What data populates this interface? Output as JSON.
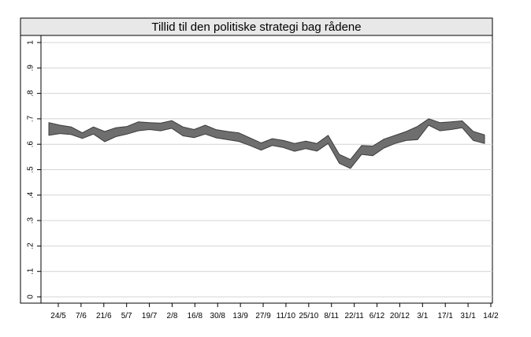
{
  "chart_data": {
    "type": "area",
    "title": "Tillid til den politiske strategi bag rådene",
    "xlabel": "",
    "ylabel": "",
    "ylim": [
      0,
      1
    ],
    "yticks": [
      0,
      0.1,
      0.2,
      0.3,
      0.4,
      0.5,
      0.6,
      0.7,
      0.8,
      0.9,
      1
    ],
    "ytick_labels": [
      "0",
      ".1",
      ".2",
      ".3",
      ".4",
      ".5",
      ".6",
      ".7",
      ".8",
      ".9",
      "1"
    ],
    "xtick_labels": [
      "24/5",
      "7/6",
      "21/6",
      "5/7",
      "19/7",
      "2/8",
      "16/8",
      "30/8",
      "13/9",
      "27/9",
      "11/10",
      "25/10",
      "8/11",
      "22/11",
      "6/12",
      "20/12",
      "3/1",
      "17/1",
      "31/1",
      "14/2"
    ],
    "grid": true,
    "band_color": "#6e6e6e",
    "band_edge_color": "#3c3c3c",
    "series": [
      {
        "upper": [
          0.685,
          0.675,
          0.668,
          0.645,
          0.668,
          0.65,
          0.665,
          0.67,
          0.688,
          0.685,
          0.683,
          0.693,
          0.668,
          0.658,
          0.675,
          0.657,
          0.65,
          0.645,
          0.625,
          0.605,
          0.622,
          0.615,
          0.603,
          0.612,
          0.603,
          0.635,
          0.56,
          0.54,
          0.595,
          0.593,
          0.62,
          0.635,
          0.65,
          0.67,
          0.7,
          0.685,
          0.688,
          0.692,
          0.65,
          0.637
        ],
        "lower": [
          0.635,
          0.642,
          0.638,
          0.623,
          0.64,
          0.61,
          0.63,
          0.64,
          0.653,
          0.658,
          0.653,
          0.663,
          0.633,
          0.626,
          0.64,
          0.625,
          0.618,
          0.611,
          0.595,
          0.577,
          0.595,
          0.587,
          0.572,
          0.583,
          0.573,
          0.603,
          0.525,
          0.505,
          0.56,
          0.555,
          0.585,
          0.603,
          0.615,
          0.618,
          0.675,
          0.653,
          0.658,
          0.665,
          0.615,
          0.603
        ]
      }
    ]
  }
}
